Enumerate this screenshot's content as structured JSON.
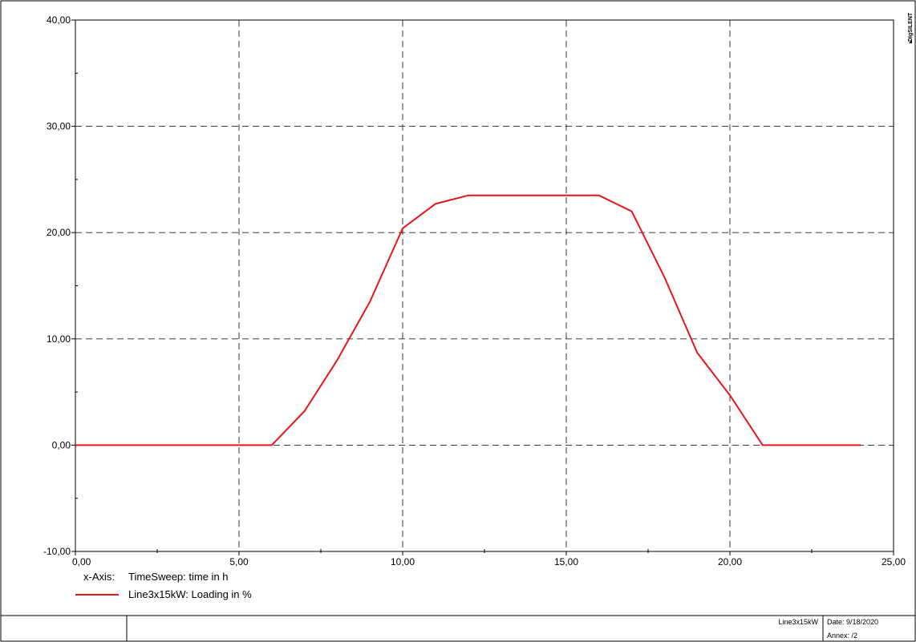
{
  "chart_data": {
    "type": "line",
    "x_axis": {
      "label_prefix": "x-Axis:",
      "label": "TimeSweep: time in h",
      "range": [
        0,
        25
      ],
      "ticks": [
        0,
        5,
        10,
        15,
        20,
        25
      ],
      "tick_labels": [
        "0,00",
        "5,00",
        "10,00",
        "15,00",
        "20,00",
        "25,00"
      ],
      "minor_ticks": [
        2.5,
        7.5,
        12.5,
        17.5,
        22.5
      ]
    },
    "y_axis": {
      "range": [
        -10,
        40
      ],
      "ticks": [
        -10,
        0,
        10,
        20,
        30,
        40
      ],
      "tick_labels": [
        "-10,00",
        "0,00",
        "10,00",
        "20,00",
        "30,00",
        "40,00"
      ],
      "minor_ticks": [
        -5,
        5,
        15,
        25,
        35
      ]
    },
    "grid": true,
    "series": [
      {
        "name": "Line3x15kW: Loading in %",
        "color": "#e8141b",
        "x": [
          0,
          1,
          2,
          3,
          4,
          5,
          6,
          7,
          8,
          9,
          10,
          11,
          12,
          13,
          14,
          15,
          16,
          17,
          18,
          19,
          20,
          21,
          22,
          23,
          24
        ],
        "y": [
          0,
          0,
          0,
          0,
          0,
          0,
          0,
          3.2,
          8.0,
          13.5,
          20.4,
          22.7,
          23.5,
          23.5,
          23.5,
          23.5,
          23.5,
          22.0,
          15.8,
          8.7,
          4.7,
          0,
          0,
          0,
          0
        ]
      }
    ]
  },
  "footer": {
    "object_name": "Line3x15kW",
    "date": "Date: 9/18/2020",
    "annex": "Annex:   /2"
  },
  "logo": {
    "text": "DIgSILENT"
  }
}
